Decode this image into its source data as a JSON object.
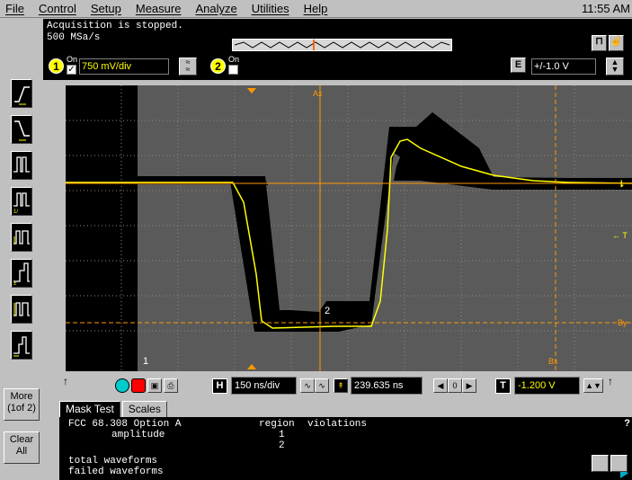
{
  "menu": {
    "items": [
      "File",
      "Control",
      "Setup",
      "Measure",
      "Analyze",
      "Utilities",
      "Help"
    ],
    "clock": "11:55 AM"
  },
  "status": {
    "line1": "Acquisition is stopped.",
    "line2": "500 MSa/s"
  },
  "channels": {
    "ch1": {
      "number": "1",
      "on_label": "On",
      "checked": "✓",
      "scale": "750 mV/div"
    },
    "ch2": {
      "number": "2",
      "on_label": "On"
    },
    "offset_button": "E",
    "offset": "+/-1.0 V"
  },
  "graticule": {
    "marker_ax": "Ax",
    "marker_bx": "Bx",
    "marker_by": "By",
    "marker_t": "← T",
    "marker_1": "1",
    "marker_2": "2"
  },
  "timebase": {
    "h_button": "H",
    "scale": "150 ns/div",
    "delay": "239.635 ns",
    "t_button": "T",
    "trigger_level": "-1.200 V"
  },
  "side_buttons": {
    "more": "More",
    "more_sub": "(1of 2)",
    "clear": "Clear",
    "clear_sub": "All"
  },
  "tabs": [
    "Mask Test",
    "Scales"
  ],
  "mask": {
    "name": "FCC 68.308 Option A",
    "sub": "amplitude",
    "region_header": "region",
    "violations_header": "violations",
    "regions": [
      "1",
      "2"
    ],
    "total_label": "total waveforms",
    "failed_label": "failed waveforms",
    "help": "?"
  },
  "colors": {
    "trace": "#ffff00",
    "marker": "#ff9900",
    "grid": "#8a8a8a",
    "mask_region": "#000000",
    "graticule_bg": "#5a5a5a"
  }
}
